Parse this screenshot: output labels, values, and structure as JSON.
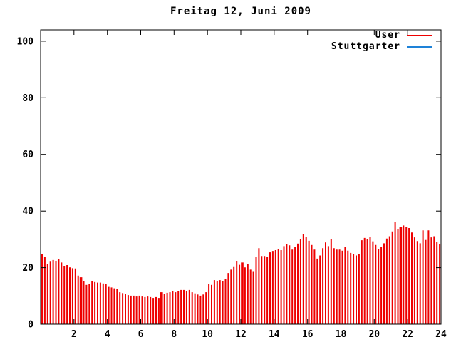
{
  "window": {
    "title": "Freitag 12, Juni 2009"
  },
  "legend": {
    "items": [
      {
        "label": "User",
        "color": "#ee0000"
      },
      {
        "label": "Stuttgarter",
        "color": "#1e82d8"
      }
    ]
  },
  "chart_data": {
    "type": "bar",
    "title": "Freitag 12, Juni 2009",
    "xlabel": "",
    "ylabel": "",
    "xlim": [
      0,
      24
    ],
    "ylim": [
      0,
      104
    ],
    "grid": false,
    "legend_position": "top-right",
    "xticks": [
      2,
      4,
      6,
      8,
      10,
      12,
      14,
      16,
      18,
      20,
      22,
      24
    ],
    "yticks": [
      0,
      20,
      40,
      60,
      80,
      100
    ],
    "x_unit": "hour of day",
    "x_start_hour": 0.0833,
    "x_step_hours": 0.16667,
    "axis_color": "#000000",
    "background_color": "#ffffff",
    "series": [
      {
        "name": "User",
        "color": "#ee0000",
        "style": "impulses",
        "highlight_indices": [
          14,
          43,
          72,
          129
        ],
        "values": [
          24.8,
          23.9,
          21.4,
          22.1,
          22.7,
          22.4,
          23.0,
          21.8,
          20.4,
          20.9,
          20.1,
          19.8,
          19.7,
          17.2,
          16.6,
          15.1,
          13.9,
          14.2,
          15.1,
          14.9,
          14.7,
          14.7,
          14.4,
          14.2,
          13.2,
          13.0,
          12.7,
          12.5,
          11.3,
          11.0,
          10.8,
          10.3,
          10.1,
          10.1,
          9.8,
          10.1,
          9.8,
          9.6,
          9.8,
          9.6,
          9.3,
          9.6,
          9.3,
          11.3,
          10.8,
          11.1,
          11.3,
          11.6,
          11.3,
          11.8,
          12.1,
          12.1,
          11.8,
          12.1,
          11.3,
          10.9,
          10.5,
          10.1,
          10.5,
          11.3,
          14.3,
          13.9,
          15.6,
          15.1,
          15.6,
          15.1,
          16.0,
          18.1,
          19.3,
          20.2,
          22.2,
          21.0,
          21.8,
          20.1,
          21.4,
          19.3,
          18.5,
          23.9,
          26.9,
          24.1,
          24.1,
          23.9,
          25.4,
          25.9,
          26.2,
          26.5,
          26.2,
          27.6,
          28.2,
          27.9,
          26.4,
          27.4,
          28.5,
          30.2,
          31.9,
          30.9,
          29.5,
          28.0,
          26.4,
          23.2,
          24.3,
          26.9,
          28.9,
          27.6,
          30.1,
          26.9,
          26.4,
          26.4,
          26.0,
          27.2,
          26.0,
          25.2,
          24.8,
          24.3,
          24.8,
          29.7,
          30.5,
          30.1,
          30.9,
          29.3,
          28.0,
          26.5,
          27.3,
          28.6,
          30.3,
          31.1,
          32.8,
          36.1,
          33.6,
          34.4,
          34.9,
          34.4,
          34.0,
          32.4,
          30.7,
          29.4,
          28.6,
          33.2,
          29.8,
          33.2,
          30.7,
          31.1,
          29.0,
          28.2
        ]
      },
      {
        "name": "Stuttgarter",
        "color": "#1e82d8",
        "style": "impulses",
        "values": [],
        "note": "only legend entry visible; no blue bars rendered in plot area"
      }
    ]
  }
}
